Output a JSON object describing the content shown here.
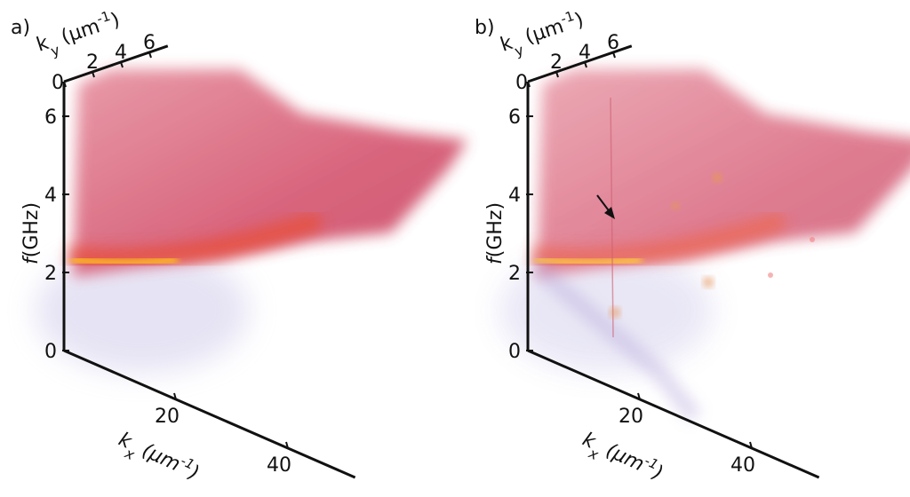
{
  "panels": [
    {
      "label": "a)",
      "ky_axis": {
        "label": [
          "k",
          "y",
          " (µm",
          "-1",
          ")"
        ],
        "ticks": [
          0,
          2,
          4,
          6
        ]
      },
      "f_axis": {
        "label": [
          "f",
          "(GHz)"
        ],
        "ticks": [
          0,
          2,
          4,
          6
        ]
      },
      "kx_axis": {
        "label": [
          "k",
          "x",
          " (µm",
          "-1",
          ")"
        ],
        "ticks": [
          20,
          40
        ]
      }
    },
    {
      "label": "b)",
      "ky_axis": {
        "label": [
          "k",
          "y",
          " (µm",
          "-1",
          ")"
        ],
        "ticks": [
          0,
          2,
          4,
          6
        ]
      },
      "f_axis": {
        "label": [
          "f",
          "(GHz)"
        ],
        "ticks": [
          0,
          2,
          4,
          6
        ]
      },
      "kx_axis": {
        "label": [
          "k",
          "x",
          " (µm",
          "-1",
          ")"
        ],
        "ticks": [
          20,
          40
        ]
      }
    }
  ]
}
